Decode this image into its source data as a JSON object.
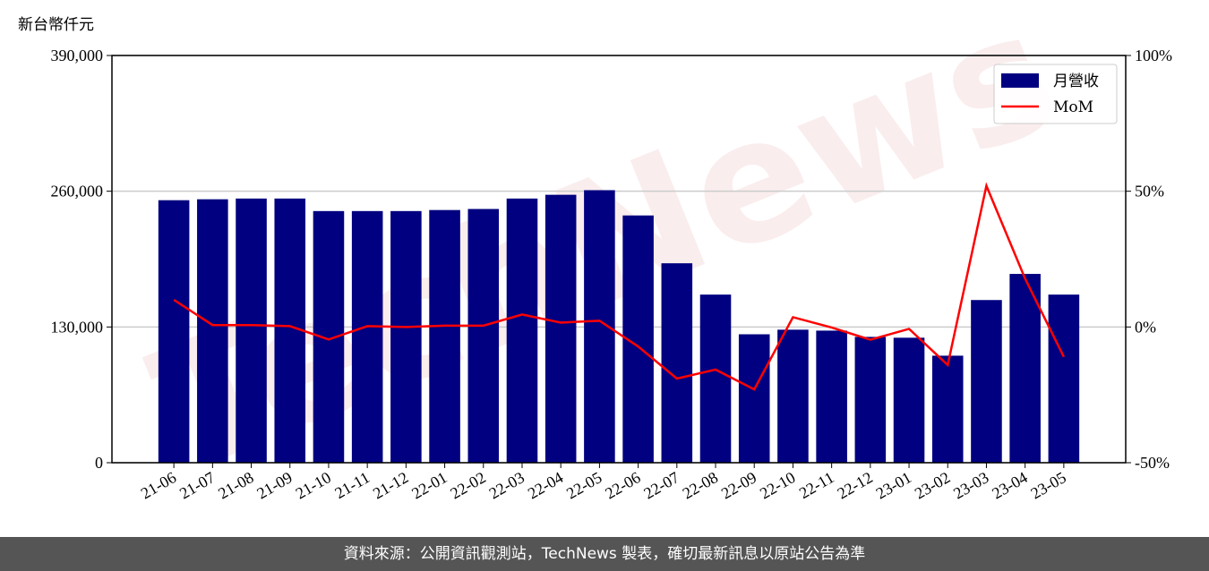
{
  "chart_data": {
    "type": "bar",
    "y_label": "新台幣仟元",
    "watermark": "TechNews",
    "categories": [
      "21-06",
      "21-07",
      "21-08",
      "21-09",
      "21-10",
      "21-11",
      "21-12",
      "22-01",
      "22-02",
      "22-03",
      "22-04",
      "22-05",
      "22-06",
      "22-07",
      "22-08",
      "22-09",
      "22-10",
      "22-11",
      "22-12",
      "23-01",
      "23-02",
      "23-03",
      "23-04",
      "23-05"
    ],
    "series": [
      {
        "name": "月營收",
        "type": "bar",
        "color": "#000080",
        "values": [
          251400,
          252300,
          253000,
          253000,
          241000,
          241000,
          241000,
          242000,
          243000,
          253000,
          256600,
          261000,
          236800,
          191000,
          161000,
          123000,
          127400,
          126500,
          120500,
          119700,
          102500,
          155800,
          180800,
          161000
        ]
      },
      {
        "name": "MoM",
        "type": "line",
        "axis": "y2",
        "color": "#ff0000",
        "values": [
          10,
          0.7,
          0.7,
          0.3,
          -4.6,
          0.3,
          0,
          0.5,
          0.5,
          4.6,
          1.6,
          2.3,
          -7.2,
          -19,
          -15.7,
          -23,
          3.6,
          -0.2,
          -4.7,
          -0.7,
          -14,
          52,
          17.8,
          -11
        ]
      }
    ],
    "ylim": [
      0,
      390000
    ],
    "yticks": [
      0,
      {
        "value": 130000,
        "label": "130,000"
      },
      {
        "value": 260000,
        "label": "260,000"
      },
      {
        "value": 390000,
        "label": "390,000"
      }
    ],
    "y2lim": [
      -50,
      100
    ],
    "y2ticks": [
      {
        "value": -50,
        "label": "-50%"
      },
      {
        "value": 0,
        "label": "0%"
      },
      {
        "value": 50,
        "label": "50%"
      },
      {
        "value": 100,
        "label": "100%"
      }
    ],
    "grid": true,
    "legend": "upper right"
  },
  "footer": "資料來源：公開資訊觀測站，TechNews 製表，確切最新訊息以原站公告為準"
}
